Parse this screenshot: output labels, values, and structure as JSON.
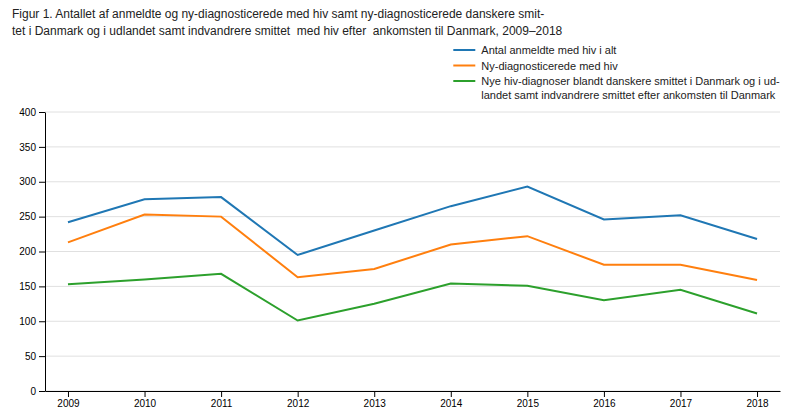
{
  "chart_data": {
    "type": "line",
    "title": "Figur 1. Antallet af anmeldte og ny-diagnosticerede med hiv samt ny-diagnosticerede danskere smit-\ntet i Danmark og i udlandet samt indvandrere smittet  med hiv efter  ankomsten til Danmark, 2009–2018",
    "x": [
      2009,
      2010,
      2011,
      2012,
      2013,
      2014,
      2015,
      2016,
      2017,
      2018
    ],
    "series": [
      {
        "name": "Antal anmeldte med hiv i alt",
        "values": [
          242,
          275,
          278,
          195,
          230,
          265,
          293,
          246,
          252,
          218
        ]
      },
      {
        "name": "Ny-diagnosticerede med hiv",
        "values": [
          213,
          253,
          250,
          163,
          175,
          210,
          222,
          181,
          181,
          159
        ]
      },
      {
        "name": "Nye hiv-diagnoser blandt danskere smittet i Danmark og i ud-\nlandet samt indvandrere smittet efter ankomsten til Danmark",
        "values": [
          153,
          160,
          168,
          101,
          125,
          154,
          151,
          130,
          145,
          111
        ]
      }
    ],
    "xlim": [
      2008.7,
      2018.3
    ],
    "xticks": [
      2009,
      2010,
      2011,
      2012,
      2013,
      2014,
      2015,
      2016,
      2017,
      2018
    ],
    "ylim": [
      0,
      400
    ],
    "yticks": [
      0,
      50,
      100,
      150,
      200,
      250,
      300,
      350,
      400
    ],
    "grid": true,
    "legend": "upper right"
  }
}
